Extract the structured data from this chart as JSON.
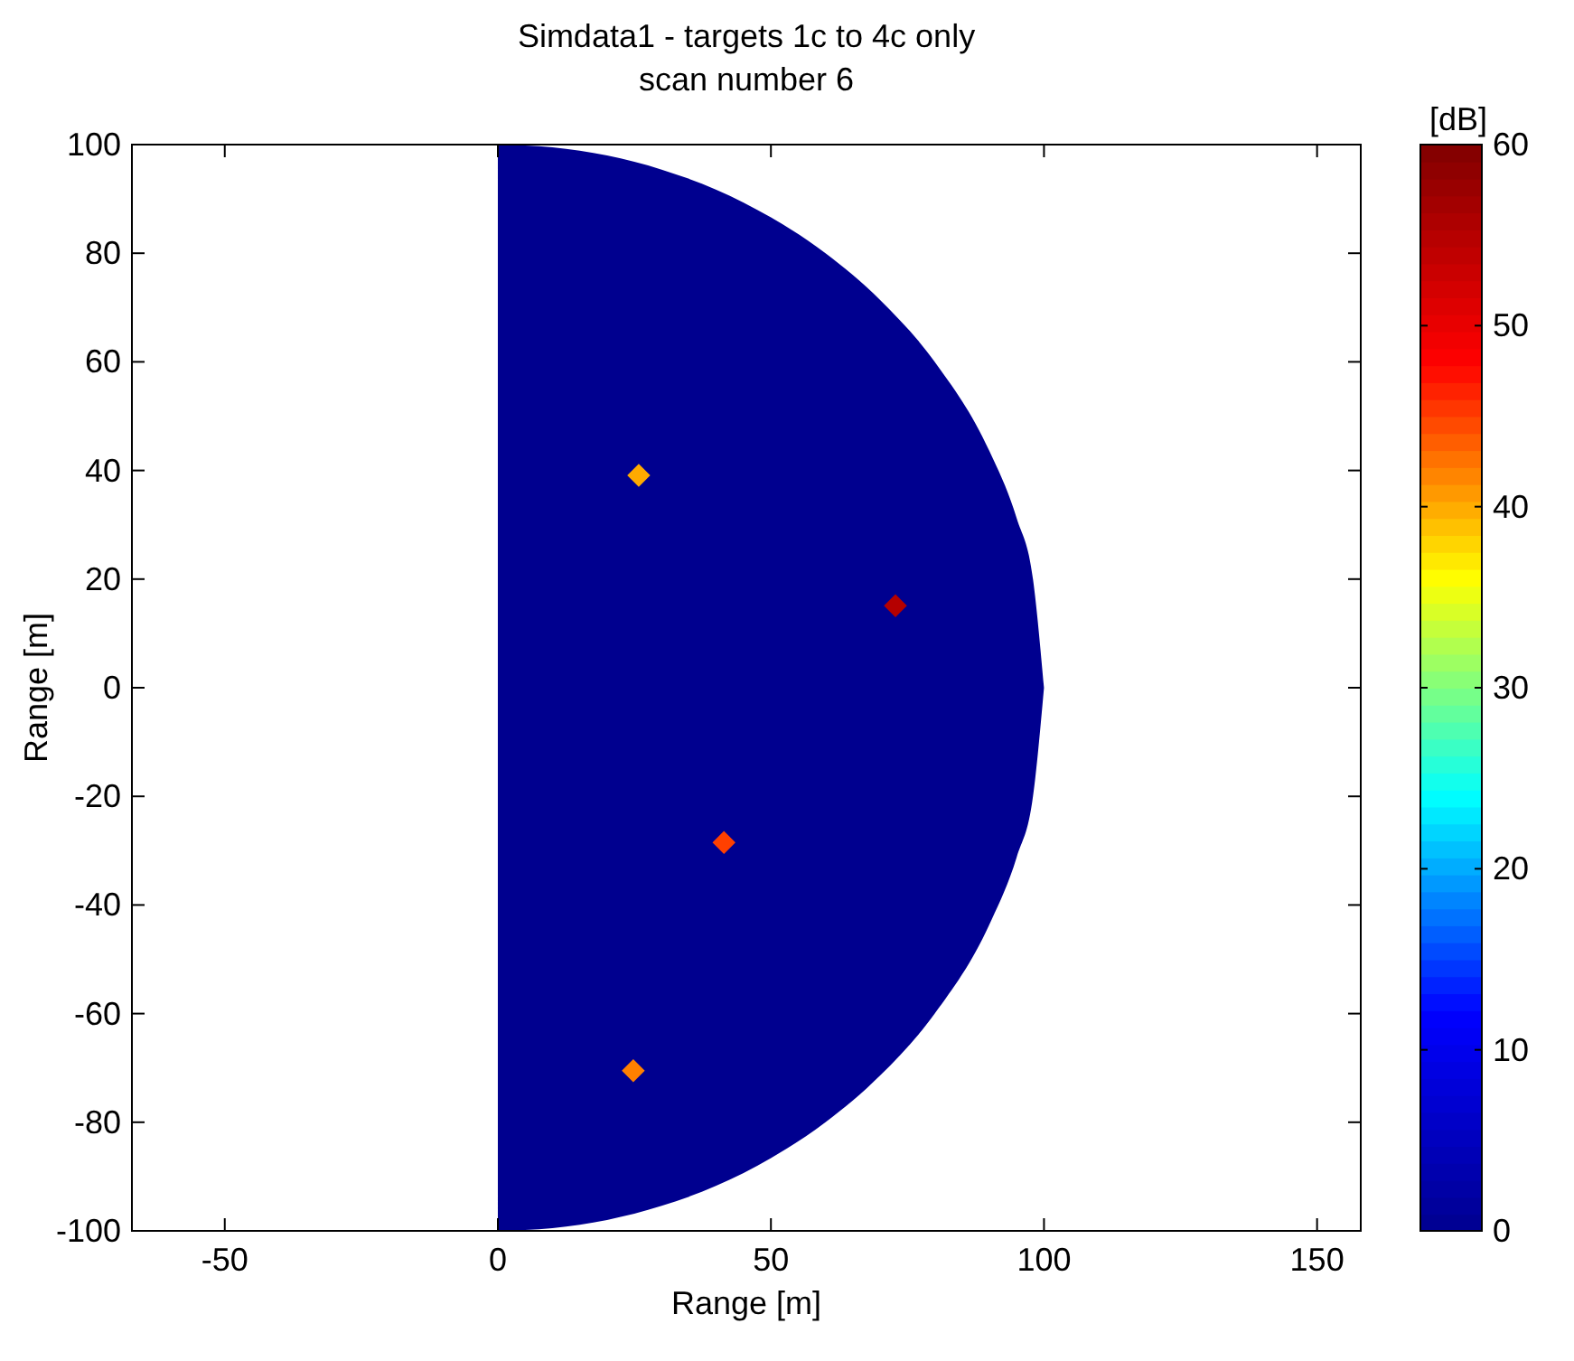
{
  "chart_data": {
    "type": "scatter",
    "title": "Simdata1 - targets 1c to 4c only",
    "subtitle": "scan number 6",
    "xlabel": "Range [m]",
    "ylabel": "Range [m]",
    "clabel": "[dB]",
    "xlim": [
      -67,
      158
    ],
    "xticks": [
      -50,
      0,
      50,
      100,
      150
    ],
    "ylim": [
      -100,
      100
    ],
    "yticks": [
      -100,
      -80,
      -60,
      -40,
      -20,
      0,
      20,
      40,
      60,
      80,
      100
    ],
    "clim": [
      0,
      60
    ],
    "cticks": [
      0,
      10,
      20,
      30,
      40,
      50,
      60
    ],
    "grid": false,
    "series": [
      {
        "type": "area",
        "color": "#00008f",
        "x": [
          0,
          10,
          20,
          30,
          40,
          50,
          60,
          70,
          80,
          90,
          95,
          98,
          100
        ],
        "values": [
          100,
          99.5,
          98,
          95.4,
          91.7,
          86.6,
          80,
          71.4,
          60,
          43.6,
          31.2,
          19.9,
          0
        ]
      },
      {
        "type": "area",
        "color": "#00008f",
        "x": [
          0,
          10,
          20,
          30,
          40,
          50,
          60,
          70,
          80,
          90,
          95,
          98,
          100
        ],
        "values": [
          -100,
          -99.5,
          -98,
          -95.4,
          -91.7,
          -86.6,
          -80,
          -71.4,
          -60,
          -43.6,
          -31.2,
          -19.9,
          0
        ]
      },
      {
        "x": [
          25.8,
          72.8,
          41.4,
          24.8
        ],
        "values": [
          39.1,
          15.1,
          -28.5,
          -70.5
        ],
        "cvalues": [
          40,
          55,
          45,
          42
        ],
        "colors": [
          "#ffaa00",
          "#b50000",
          "#ff4000",
          "#ff8000"
        ],
        "marker": "diamond"
      }
    ]
  }
}
